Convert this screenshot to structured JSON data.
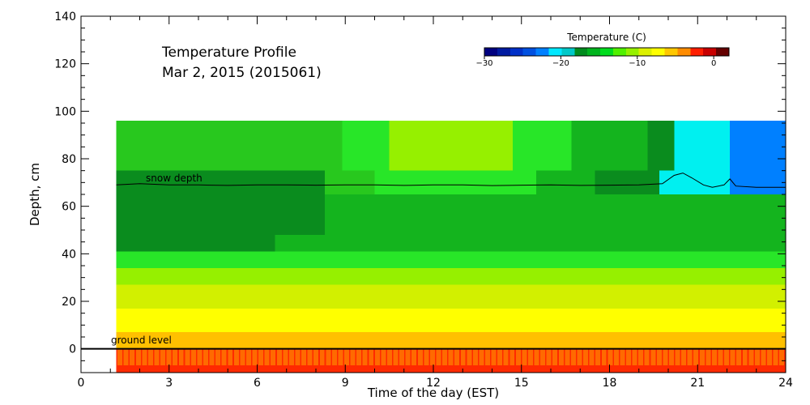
{
  "chart_data": {
    "type": "heatmap",
    "title_lines": [
      "Temperature Profile",
      "Mar  2, 2015 (2015061)"
    ],
    "xlabel": "Time of the day (EST)",
    "ylabel": "Depth, cm",
    "xlim": [
      0,
      24
    ],
    "ylim": [
      -10,
      140
    ],
    "xticks": [
      0,
      3,
      6,
      9,
      12,
      15,
      18,
      21,
      24
    ],
    "yticks": [
      0,
      20,
      40,
      60,
      80,
      100,
      120,
      140
    ],
    "colorbar": {
      "label": "Temperature (C)",
      "range": [
        -30,
        2
      ],
      "ticks": [
        -30,
        -20,
        -10,
        0
      ],
      "tick_labels": [
        "−30",
        "−20",
        "−10",
        "0"
      ],
      "colors": [
        "#000080",
        "#001aa0",
        "#0030c8",
        "#0050e0",
        "#0080ff",
        "#00e8ff",
        "#00c8c8",
        "#008c1e",
        "#00b41e",
        "#00dc1e",
        "#50f000",
        "#96f000",
        "#dcf000",
        "#ffff00",
        "#ffc800",
        "#ff8c00",
        "#ff1e00",
        "#c80000",
        "#640000"
      ]
    },
    "data_start_hour": 1.2,
    "bands": [
      {
        "y": [
          -10,
          -7
        ],
        "color": "#ff2a00"
      },
      {
        "y": [
          -7,
          0
        ],
        "color": "#ff6a00",
        "flicker": "#ff2a00"
      },
      {
        "y": [
          0,
          7
        ],
        "color": "#ffc000"
      },
      {
        "y": [
          7,
          17
        ],
        "color": "#ffff00"
      },
      {
        "y": [
          17,
          27
        ],
        "color": "#d2f000"
      },
      {
        "y": [
          27,
          34
        ],
        "color": "#96f000"
      },
      {
        "y": [
          34,
          41
        ],
        "color": "#28e628"
      },
      {
        "y": [
          41,
          48
        ],
        "color": "#14b41e"
      },
      {
        "y": [
          48,
          55
        ],
        "color": "#0a8c1e"
      },
      {
        "y": [
          55,
          65
        ],
        "color": "#0a8c1e"
      },
      {
        "y": [
          65,
          75
        ],
        "color": "#14b41e"
      },
      {
        "y": [
          75,
          85
        ],
        "color": "#28c81e"
      },
      {
        "y": [
          85,
          96
        ],
        "color": "#28c81e"
      }
    ],
    "regions": [
      {
        "x": [
          1.2,
          6.6
        ],
        "y": [
          41,
          48
        ],
        "color": "#0a8c1e"
      },
      {
        "x": [
          1.2,
          8.3
        ],
        "y": [
          48,
          55
        ],
        "color": "#0a8c1e"
      },
      {
        "x": [
          8.3,
          18.0
        ],
        "y": [
          48,
          55
        ],
        "color": "#14b41e"
      },
      {
        "x": [
          18.0,
          24.0
        ],
        "y": [
          48,
          55
        ],
        "color": "#14b41e"
      },
      {
        "x": [
          1.2,
          8.3
        ],
        "y": [
          55,
          65
        ],
        "color": "#0a8c1e"
      },
      {
        "x": [
          8.3,
          11.0
        ],
        "y": [
          55,
          65
        ],
        "color": "#14b41e"
      },
      {
        "x": [
          11.0,
          24.0
        ],
        "y": [
          55,
          65
        ],
        "color": "#14b41e"
      },
      {
        "x": [
          1.2,
          8.3
        ],
        "y": [
          65,
          75
        ],
        "color": "#0a8c1e"
      },
      {
        "x": [
          8.3,
          10.0
        ],
        "y": [
          65,
          75
        ],
        "color": "#28c81e"
      },
      {
        "x": [
          10.0,
          15.5
        ],
        "y": [
          65,
          75
        ],
        "color": "#28e628"
      },
      {
        "x": [
          15.5,
          17.5
        ],
        "y": [
          65,
          75
        ],
        "color": "#14b41e"
      },
      {
        "x": [
          17.5,
          19.7
        ],
        "y": [
          65,
          75
        ],
        "color": "#0a8c1e"
      },
      {
        "x": [
          19.7,
          22.1
        ],
        "y": [
          65,
          75
        ],
        "color": "#00f0f0"
      },
      {
        "x": [
          22.1,
          24.0
        ],
        "y": [
          65,
          75
        ],
        "color": "#0080ff"
      },
      {
        "x": [
          8.9,
          10.5
        ],
        "y": [
          75,
          96
        ],
        "color": "#28e628"
      },
      {
        "x": [
          10.5,
          14.7
        ],
        "y": [
          75,
          96
        ],
        "color": "#96f000"
      },
      {
        "x": [
          14.7,
          16.7
        ],
        "y": [
          75,
          96
        ],
        "color": "#28e628"
      },
      {
        "x": [
          16.7,
          19.3
        ],
        "y": [
          75,
          96
        ],
        "color": "#14b41e"
      },
      {
        "x": [
          19.3,
          20.2
        ],
        "y": [
          75,
          96
        ],
        "color": "#0a8c1e"
      },
      {
        "x": [
          20.2,
          22.1
        ],
        "y": [
          75,
          96
        ],
        "color": "#00f0f0"
      },
      {
        "x": [
          22.1,
          24.0
        ],
        "y": [
          75,
          96
        ],
        "color": "#0080ff"
      },
      {
        "x": [
          1.2,
          24.0
        ],
        "y": [
          34,
          41
        ],
        "color": "#28e628"
      },
      {
        "x": [
          1.2,
          11.0
        ],
        "y": [
          27,
          34
        ],
        "color": "#96f000"
      },
      {
        "x": [
          11.0,
          24.0
        ],
        "y": [
          27,
          34
        ],
        "color": "#96f000"
      }
    ],
    "snow_depth": [
      [
        1.2,
        69
      ],
      [
        2,
        69.5
      ],
      [
        3,
        69
      ],
      [
        4,
        69
      ],
      [
        5,
        68.8
      ],
      [
        6,
        69
      ],
      [
        7,
        69
      ],
      [
        8,
        68.9
      ],
      [
        9,
        69
      ],
      [
        10,
        69
      ],
      [
        11,
        68.8
      ],
      [
        12,
        69
      ],
      [
        13,
        69
      ],
      [
        14,
        68.7
      ],
      [
        15,
        68.9
      ],
      [
        16,
        69
      ],
      [
        17,
        68.8
      ],
      [
        18,
        68.9
      ],
      [
        19,
        69
      ],
      [
        19.8,
        69.5
      ],
      [
        20.2,
        73
      ],
      [
        20.5,
        74
      ],
      [
        20.8,
        72
      ],
      [
        21.2,
        69
      ],
      [
        21.5,
        68
      ],
      [
        21.9,
        69
      ],
      [
        22.1,
        71.5
      ],
      [
        22.3,
        68.5
      ],
      [
        23,
        68
      ],
      [
        24,
        68
      ]
    ],
    "annotations": {
      "snow_depth_label": "snow depth",
      "ground_level_label": "ground level"
    }
  }
}
